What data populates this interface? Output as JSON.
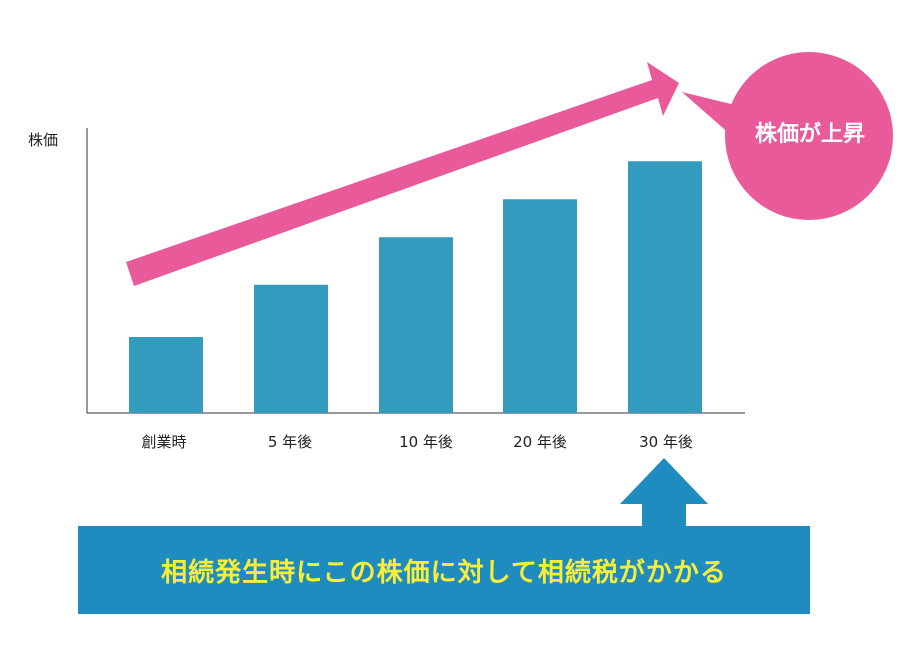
{
  "chart_data": {
    "type": "bar",
    "categories": [
      "創業時",
      "5 年後",
      "10 年後",
      "20 年後",
      "30 年後"
    ],
    "values": [
      16,
      27,
      37,
      45,
      53
    ],
    "ylabel": "株価",
    "ylim": [
      0,
      60
    ],
    "grid": false,
    "bar_color": "#339bbd"
  },
  "bubble": {
    "text": "株価が上昇",
    "color": "#e95a9a"
  },
  "banner": {
    "text": "相続発生時にこの株価に対して相続税がかかる",
    "bg_color": "#1f8cc0",
    "text_color": "#f7ee3a"
  },
  "colors": {
    "trend_arrow": "#e95a9a",
    "up_arrow": "#1f8cc0",
    "axis": "#333333"
  }
}
